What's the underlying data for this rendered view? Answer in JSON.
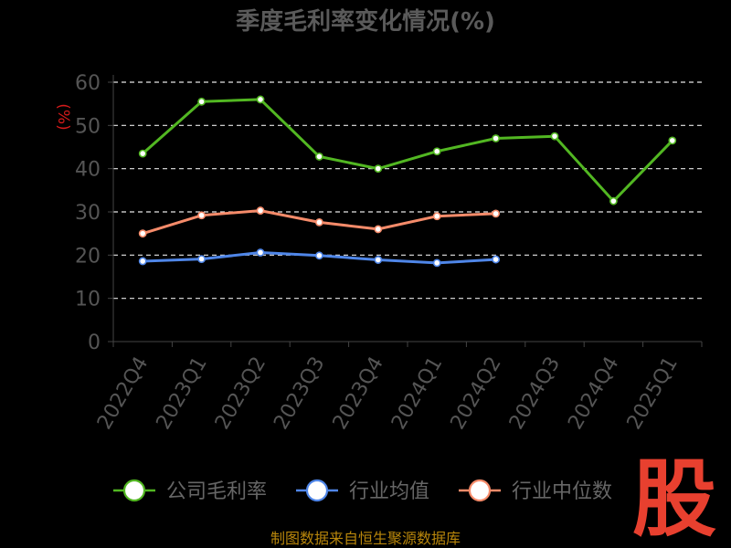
{
  "chart_data": {
    "type": "line",
    "title": "季度毛利率变化情况(%)",
    "ylabel": "(%)",
    "categories": [
      "2022Q4",
      "2023Q1",
      "2023Q2",
      "2023Q3",
      "2023Q4",
      "2024Q1",
      "2024Q2",
      "2024Q3",
      "2024Q4",
      "2025Q1"
    ],
    "ylim": [
      0,
      60
    ],
    "yticks": [
      0,
      10,
      20,
      30,
      40,
      50,
      60
    ],
    "grid": true,
    "legend_position": "bottom",
    "series": [
      {
        "name": "公司毛利率",
        "color": "#52b722",
        "values": [
          43.5,
          55.5,
          56.0,
          42.8,
          40.0,
          44.0,
          47.0,
          47.5,
          32.5,
          46.5
        ]
      },
      {
        "name": "行业均值",
        "color": "#4f86e8",
        "values": [
          18.6,
          19.1,
          20.6,
          19.9,
          18.9,
          18.2,
          19.0,
          null,
          null,
          null
        ]
      },
      {
        "name": "行业中位数",
        "color": "#f58b6a",
        "values": [
          25.0,
          29.2,
          30.3,
          27.6,
          26.0,
          29.0,
          29.6,
          null,
          null,
          null
        ]
      }
    ]
  },
  "footer": {
    "source": "制图数据来自恒生聚源数据库",
    "logo_text": "股"
  }
}
